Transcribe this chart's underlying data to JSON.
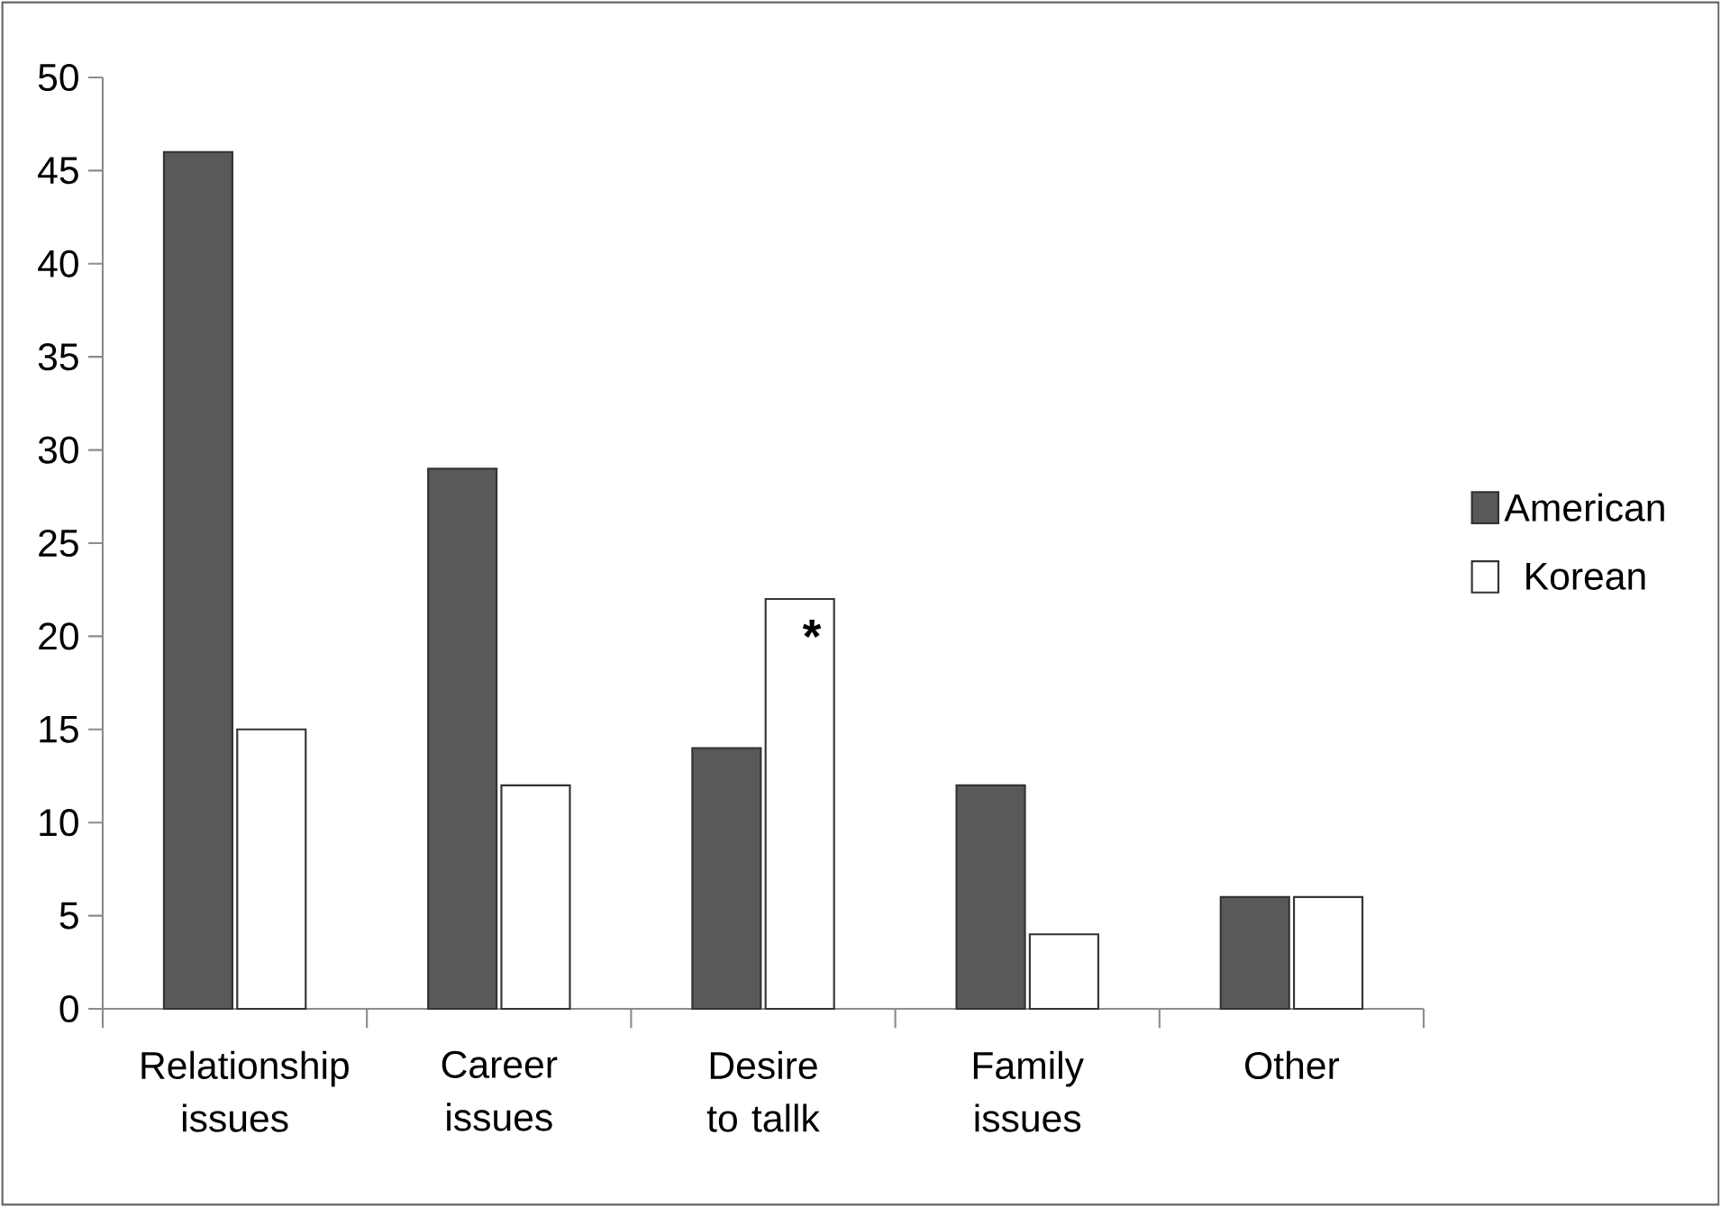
{
  "chart_data": {
    "type": "bar",
    "categories": [
      "Relationship issues",
      "Career issues",
      "Desire to tallk",
      "Family issues",
      "Other"
    ],
    "series": [
      {
        "name": "American",
        "color": "#595959",
        "values": [
          46,
          29,
          14,
          12,
          6
        ]
      },
      {
        "name": "Korean",
        "color": "#ffffff",
        "values": [
          15,
          12,
          22,
          4,
          6
        ]
      }
    ],
    "ylim": [
      0,
      50
    ],
    "yticks": [
      0,
      5,
      10,
      15,
      20,
      25,
      30,
      35,
      40,
      45,
      50
    ],
    "annotations": [
      {
        "text": "*",
        "x": "Desire to tallk",
        "y": 20
      }
    ],
    "legend": "right",
    "grid": false
  }
}
